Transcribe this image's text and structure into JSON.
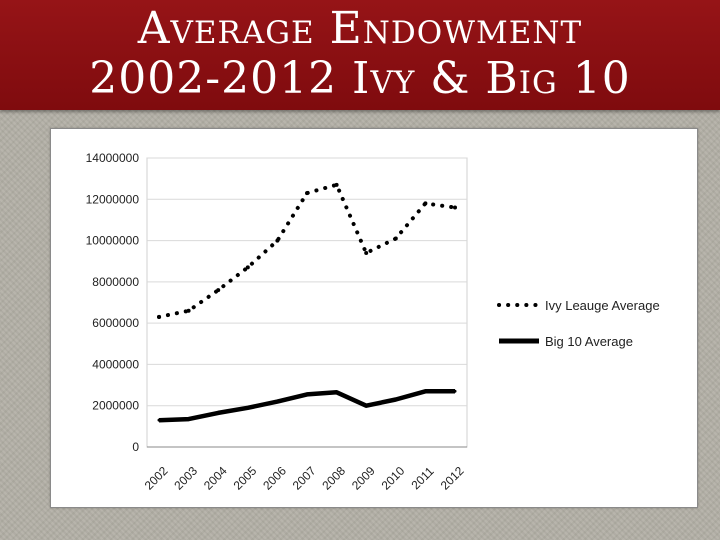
{
  "slide": {
    "title": "Average Endowment\n2002-2012 Ivy & Big 10"
  },
  "colors": {
    "title_bar": "#8c0f12",
    "series": "#000000"
  },
  "chart_data": {
    "type": "line",
    "title": "",
    "xlabel": "",
    "ylabel": "",
    "x": [
      "2002",
      "2003",
      "2004",
      "2005",
      "2006",
      "2007",
      "2008",
      "2009",
      "2010",
      "2011",
      "2012"
    ],
    "y_ticks": [
      "0",
      "2000000",
      "4000000",
      "6000000",
      "8000000",
      "10000000",
      "12000000",
      "14000000"
    ],
    "ylim": [
      0,
      14000000
    ],
    "grid": true,
    "legend": "right",
    "series": [
      {
        "name": "Ivy Leauge Average",
        "style": "dotted",
        "values": [
          6300000,
          6600000,
          7600000,
          8700000,
          10000000,
          12300000,
          12700000,
          9400000,
          10100000,
          11800000,
          11600000
        ]
      },
      {
        "name": "Big 10 Average",
        "style": "solid-thick",
        "values": [
          1300000,
          1350000,
          1650000,
          1900000,
          2200000,
          2550000,
          2650000,
          2000000,
          2300000,
          2700000,
          2700000
        ]
      }
    ]
  }
}
